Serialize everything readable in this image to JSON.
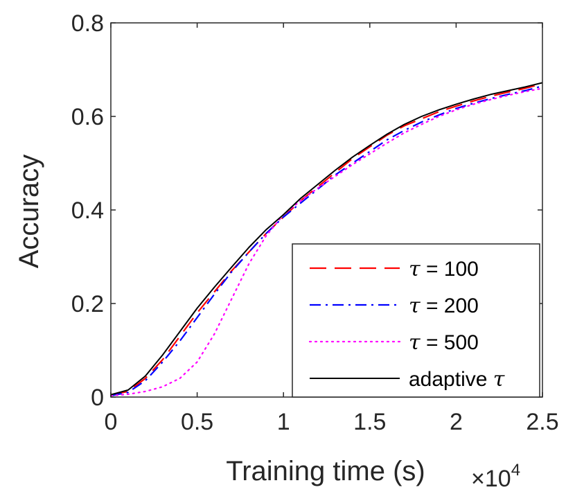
{
  "chart_data": {
    "type": "line",
    "title": "",
    "xlabel": "Training time (s)",
    "ylabel": "Accuracy",
    "x_multiplier_label": {
      "base": "×10",
      "exponent": "4"
    },
    "xlim": [
      0,
      2.5
    ],
    "ylim": [
      0,
      0.8
    ],
    "x_ticks": [
      0,
      0.5,
      1,
      1.5,
      2,
      2.5
    ],
    "x_tick_labels": [
      "0",
      "0.5",
      "1",
      "1.5",
      "2",
      "2.5"
    ],
    "y_ticks": [
      0,
      0.2,
      0.4,
      0.6,
      0.8
    ],
    "y_tick_labels": [
      "0",
      "0.2",
      "0.4",
      "0.6",
      "0.8"
    ],
    "grid": false,
    "legend_position": "bottom-right",
    "series": [
      {
        "name": "τ = 100",
        "tau_symbol": "τ",
        "label_rest": " = 100",
        "color": "#ff0000",
        "style": "dashed",
        "x": [
          0,
          0.1,
          0.2,
          0.3,
          0.4,
          0.5,
          0.6,
          0.7,
          0.8,
          0.9,
          1.0,
          1.1,
          1.2,
          1.3,
          1.4,
          1.5,
          1.6,
          1.7,
          1.8,
          1.9,
          2.0,
          2.1,
          2.2,
          2.3,
          2.4,
          2.5
        ],
        "y": [
          0.005,
          0.012,
          0.04,
          0.08,
          0.13,
          0.18,
          0.225,
          0.27,
          0.31,
          0.35,
          0.385,
          0.42,
          0.45,
          0.48,
          0.51,
          0.535,
          0.56,
          0.58,
          0.595,
          0.61,
          0.622,
          0.633,
          0.643,
          0.652,
          0.66,
          0.67
        ]
      },
      {
        "name": "τ = 200",
        "tau_symbol": "τ",
        "label_rest": " = 200",
        "color": "#0000ff",
        "style": "dashdot",
        "x": [
          0,
          0.1,
          0.2,
          0.3,
          0.4,
          0.5,
          0.6,
          0.7,
          0.8,
          0.9,
          1.0,
          1.1,
          1.2,
          1.3,
          1.4,
          1.5,
          1.6,
          1.7,
          1.8,
          1.9,
          2.0,
          2.1,
          2.2,
          2.3,
          2.4,
          2.5
        ],
        "y": [
          0.003,
          0.01,
          0.035,
          0.075,
          0.12,
          0.17,
          0.22,
          0.268,
          0.31,
          0.35,
          0.385,
          0.415,
          0.445,
          0.475,
          0.5,
          0.525,
          0.55,
          0.57,
          0.588,
          0.603,
          0.617,
          0.628,
          0.638,
          0.647,
          0.655,
          0.665
        ]
      },
      {
        "name": "τ = 500",
        "tau_symbol": "τ",
        "label_rest": " = 500",
        "color": "#ff00ff",
        "style": "dotted",
        "x": [
          0,
          0.1,
          0.2,
          0.3,
          0.4,
          0.5,
          0.6,
          0.7,
          0.8,
          0.9,
          1.0,
          1.1,
          1.2,
          1.3,
          1.4,
          1.5,
          1.6,
          1.7,
          1.8,
          1.9,
          2.0,
          2.1,
          2.2,
          2.3,
          2.4,
          2.5
        ],
        "y": [
          0.003,
          0.006,
          0.012,
          0.022,
          0.04,
          0.075,
          0.135,
          0.21,
          0.285,
          0.345,
          0.39,
          0.42,
          0.447,
          0.472,
          0.497,
          0.52,
          0.543,
          0.565,
          0.583,
          0.6,
          0.614,
          0.626,
          0.636,
          0.645,
          0.653,
          0.66
        ]
      },
      {
        "name": "adaptive τ",
        "tau_symbol": "τ",
        "label_prefix": "adaptive ",
        "color": "#000000",
        "style": "solid",
        "x": [
          0,
          0.1,
          0.2,
          0.3,
          0.4,
          0.5,
          0.6,
          0.7,
          0.8,
          0.9,
          1.0,
          1.1,
          1.2,
          1.3,
          1.4,
          1.5,
          1.6,
          1.7,
          1.8,
          1.9,
          2.0,
          2.1,
          2.2,
          2.3,
          2.4,
          2.5
        ],
        "y": [
          0.005,
          0.015,
          0.045,
          0.09,
          0.14,
          0.19,
          0.235,
          0.278,
          0.32,
          0.358,
          0.39,
          0.425,
          0.455,
          0.485,
          0.513,
          0.538,
          0.562,
          0.583,
          0.6,
          0.614,
          0.626,
          0.637,
          0.647,
          0.655,
          0.663,
          0.672
        ]
      }
    ]
  }
}
